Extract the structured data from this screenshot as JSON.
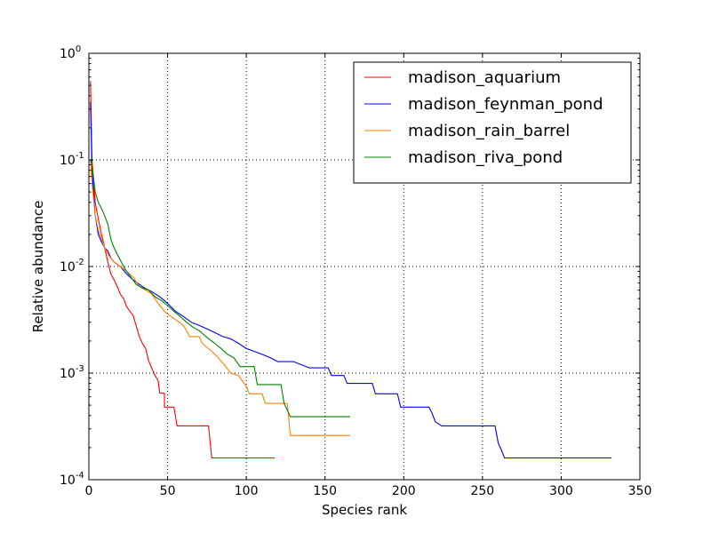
{
  "chart_data": {
    "type": "line",
    "title": "",
    "xlabel": "Species rank",
    "ylabel": "Relative abundance",
    "xlim": [
      0,
      350
    ],
    "ylim": [
      0.0001,
      1
    ],
    "yscale": "log",
    "grid": true,
    "legend_position": "top-right",
    "x_ticks": [
      {
        "value": 0,
        "label": "0"
      },
      {
        "value": 50,
        "label": "50"
      },
      {
        "value": 100,
        "label": "100"
      },
      {
        "value": 150,
        "label": "150"
      },
      {
        "value": 200,
        "label": "200"
      },
      {
        "value": 250,
        "label": "250"
      },
      {
        "value": 300,
        "label": "300"
      },
      {
        "value": 350,
        "label": "350"
      }
    ],
    "y_ticks": [
      {
        "value": 1,
        "base": "10",
        "exp": "0"
      },
      {
        "value": 0.1,
        "base": "10",
        "exp": "-1"
      },
      {
        "value": 0.01,
        "base": "10",
        "exp": "-2"
      },
      {
        "value": 0.001,
        "base": "10",
        "exp": "-3"
      },
      {
        "value": 0.0001,
        "base": "10",
        "exp": "-4"
      }
    ],
    "series": [
      {
        "name": "madison_aquarium",
        "color": "#ff0000",
        "points": [
          [
            1,
            0.55
          ],
          [
            2,
            0.1
          ],
          [
            4,
            0.04
          ],
          [
            6,
            0.028
          ],
          [
            8,
            0.02
          ],
          [
            10,
            0.015
          ],
          [
            12,
            0.011
          ],
          [
            14,
            0.0085
          ],
          [
            16,
            0.0075
          ],
          [
            18,
            0.0065
          ],
          [
            20,
            0.0055
          ],
          [
            22,
            0.005
          ],
          [
            24,
            0.0042
          ],
          [
            26,
            0.0038
          ],
          [
            28,
            0.0035
          ],
          [
            30,
            0.0028
          ],
          [
            32,
            0.0022
          ],
          [
            34,
            0.0019
          ],
          [
            36,
            0.0017
          ],
          [
            38,
            0.0013
          ],
          [
            40,
            0.0011
          ],
          [
            42,
            0.00095
          ],
          [
            44,
            0.00085
          ],
          [
            45,
            0.00065
          ],
          [
            48,
            0.00065
          ],
          [
            48,
            0.00048
          ],
          [
            54,
            0.00048
          ],
          [
            56,
            0.00032
          ],
          [
            76,
            0.00032
          ],
          [
            78,
            0.00016
          ],
          [
            118,
            0.00016
          ]
        ]
      },
      {
        "name": "madison_feynman_pond",
        "color": "#0000ff",
        "points": [
          [
            1,
            0.35
          ],
          [
            2,
            0.08
          ],
          [
            4,
            0.03
          ],
          [
            6,
            0.02
          ],
          [
            8,
            0.017
          ],
          [
            10,
            0.015
          ],
          [
            12,
            0.014
          ],
          [
            14,
            0.012
          ],
          [
            16,
            0.011
          ],
          [
            20,
            0.01
          ],
          [
            24,
            0.0085
          ],
          [
            28,
            0.0075
          ],
          [
            32,
            0.0068
          ],
          [
            36,
            0.0062
          ],
          [
            40,
            0.0058
          ],
          [
            45,
            0.0052
          ],
          [
            50,
            0.0045
          ],
          [
            55,
            0.0038
          ],
          [
            60,
            0.0034
          ],
          [
            65,
            0.003
          ],
          [
            70,
            0.0028
          ],
          [
            75,
            0.0026
          ],
          [
            80,
            0.0024
          ],
          [
            85,
            0.0022
          ],
          [
            90,
            0.0021
          ],
          [
            95,
            0.0019
          ],
          [
            100,
            0.0017
          ],
          [
            105,
            0.0016
          ],
          [
            110,
            0.0015
          ],
          [
            115,
            0.0014
          ],
          [
            120,
            0.00128
          ],
          [
            130,
            0.00128
          ],
          [
            140,
            0.00112
          ],
          [
            152,
            0.00112
          ],
          [
            154,
            0.00095
          ],
          [
            162,
            0.00095
          ],
          [
            164,
            0.0008
          ],
          [
            180,
            0.0008
          ],
          [
            182,
            0.00064
          ],
          [
            196,
            0.00064
          ],
          [
            198,
            0.00048
          ],
          [
            216,
            0.00048
          ],
          [
            218,
            0.00042
          ],
          [
            220,
            0.00035
          ],
          [
            224,
            0.00032
          ],
          [
            258,
            0.00032
          ],
          [
            260,
            0.00022
          ],
          [
            262,
            0.00019
          ],
          [
            264,
            0.00016
          ],
          [
            332,
            0.00016
          ]
        ]
      },
      {
        "name": "madison_rain_barrel",
        "color": "#ff8000",
        "points": [
          [
            1,
            0.1
          ],
          [
            2,
            0.06
          ],
          [
            4,
            0.03
          ],
          [
            6,
            0.022
          ],
          [
            8,
            0.018
          ],
          [
            10,
            0.015
          ],
          [
            12,
            0.013
          ],
          [
            14,
            0.012
          ],
          [
            16,
            0.011
          ],
          [
            18,
            0.0105
          ],
          [
            20,
            0.01
          ],
          [
            22,
            0.0095
          ],
          [
            24,
            0.009
          ],
          [
            26,
            0.0085
          ],
          [
            28,
            0.008
          ],
          [
            30,
            0.0072
          ],
          [
            32,
            0.0065
          ],
          [
            36,
            0.006
          ],
          [
            40,
            0.0055
          ],
          [
            44,
            0.0045
          ],
          [
            48,
            0.0038
          ],
          [
            52,
            0.0034
          ],
          [
            56,
            0.0031
          ],
          [
            60,
            0.0028
          ],
          [
            62,
            0.0025
          ],
          [
            64,
            0.0022
          ],
          [
            70,
            0.0022
          ],
          [
            72,
            0.0019
          ],
          [
            78,
            0.0016
          ],
          [
            82,
            0.0014
          ],
          [
            86,
            0.0012
          ],
          [
            90,
            0.001
          ],
          [
            95,
            0.00095
          ],
          [
            100,
            0.00075
          ],
          [
            102,
            0.00064
          ],
          [
            110,
            0.00064
          ],
          [
            112,
            0.00052
          ],
          [
            126,
            0.00052
          ],
          [
            128,
            0.00026
          ],
          [
            166,
            0.00026
          ]
        ]
      },
      {
        "name": "madison_riva_pond",
        "color": "#008000",
        "points": [
          [
            1,
            0.1
          ],
          [
            2,
            0.09
          ],
          [
            4,
            0.05
          ],
          [
            6,
            0.04
          ],
          [
            8,
            0.035
          ],
          [
            10,
            0.03
          ],
          [
            12,
            0.025
          ],
          [
            14,
            0.018
          ],
          [
            16,
            0.015
          ],
          [
            18,
            0.013
          ],
          [
            20,
            0.0115
          ],
          [
            22,
            0.01
          ],
          [
            24,
            0.009
          ],
          [
            26,
            0.0082
          ],
          [
            28,
            0.0075
          ],
          [
            30,
            0.0068
          ],
          [
            34,
            0.0063
          ],
          [
            38,
            0.006
          ],
          [
            42,
            0.0052
          ],
          [
            46,
            0.0048
          ],
          [
            50,
            0.0043
          ],
          [
            54,
            0.0038
          ],
          [
            58,
            0.0034
          ],
          [
            62,
            0.003
          ],
          [
            66,
            0.0027
          ],
          [
            70,
            0.0025
          ],
          [
            76,
            0.0021
          ],
          [
            80,
            0.0019
          ],
          [
            84,
            0.0017
          ],
          [
            88,
            0.0015
          ],
          [
            92,
            0.0014
          ],
          [
            96,
            0.00115
          ],
          [
            105,
            0.00115
          ],
          [
            107,
            0.00078
          ],
          [
            122,
            0.00078
          ],
          [
            124,
            0.00052
          ],
          [
            126,
            0.00045
          ],
          [
            128,
            0.00039
          ],
          [
            166,
            0.00039
          ]
        ]
      }
    ]
  }
}
